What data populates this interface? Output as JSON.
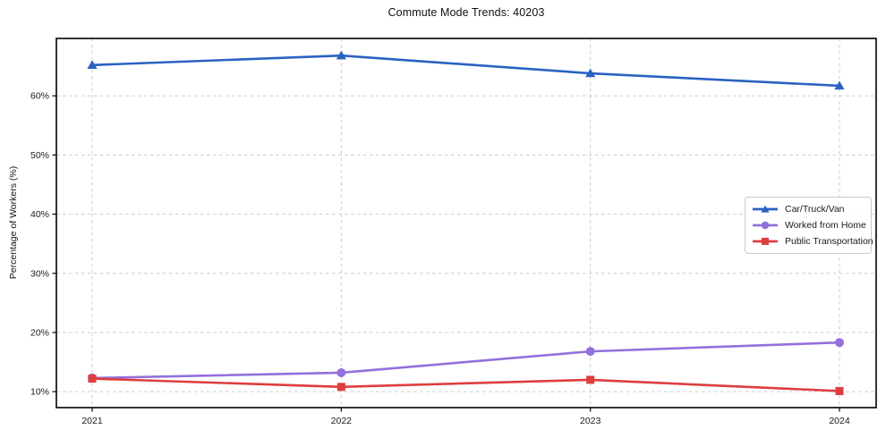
{
  "chart_data": {
    "type": "line",
    "title": "Commute Mode Trends: 40203",
    "xlabel": "",
    "ylabel": "Percentage of Workers (%)",
    "categories": [
      "2021",
      "2022",
      "2023",
      "2024"
    ],
    "series": [
      {
        "name": "Car/Truck/Van",
        "color": "#2a62c2",
        "marker": "triangle",
        "values": [
          65.2,
          66.8,
          63.8,
          61.7
        ]
      },
      {
        "name": "Worked from Home",
        "color": "#9370db",
        "marker": "circle",
        "values": [
          12.3,
          13.2,
          16.8,
          18.3
        ]
      },
      {
        "name": "Public Transportation",
        "color": "#de3e3e",
        "marker": "square",
        "values": [
          12.2,
          10.8,
          12.0,
          10.1
        ]
      }
    ],
    "ylim": [
      7.3,
      69.7
    ],
    "yticks": [
      10,
      20,
      30,
      40,
      50,
      60
    ],
    "ytick_suffix": "%",
    "grid": true,
    "grid_style": "dashed",
    "grid_color": "#cccccc",
    "axis_color": "#000000",
    "legend_position": "right-middle"
  }
}
